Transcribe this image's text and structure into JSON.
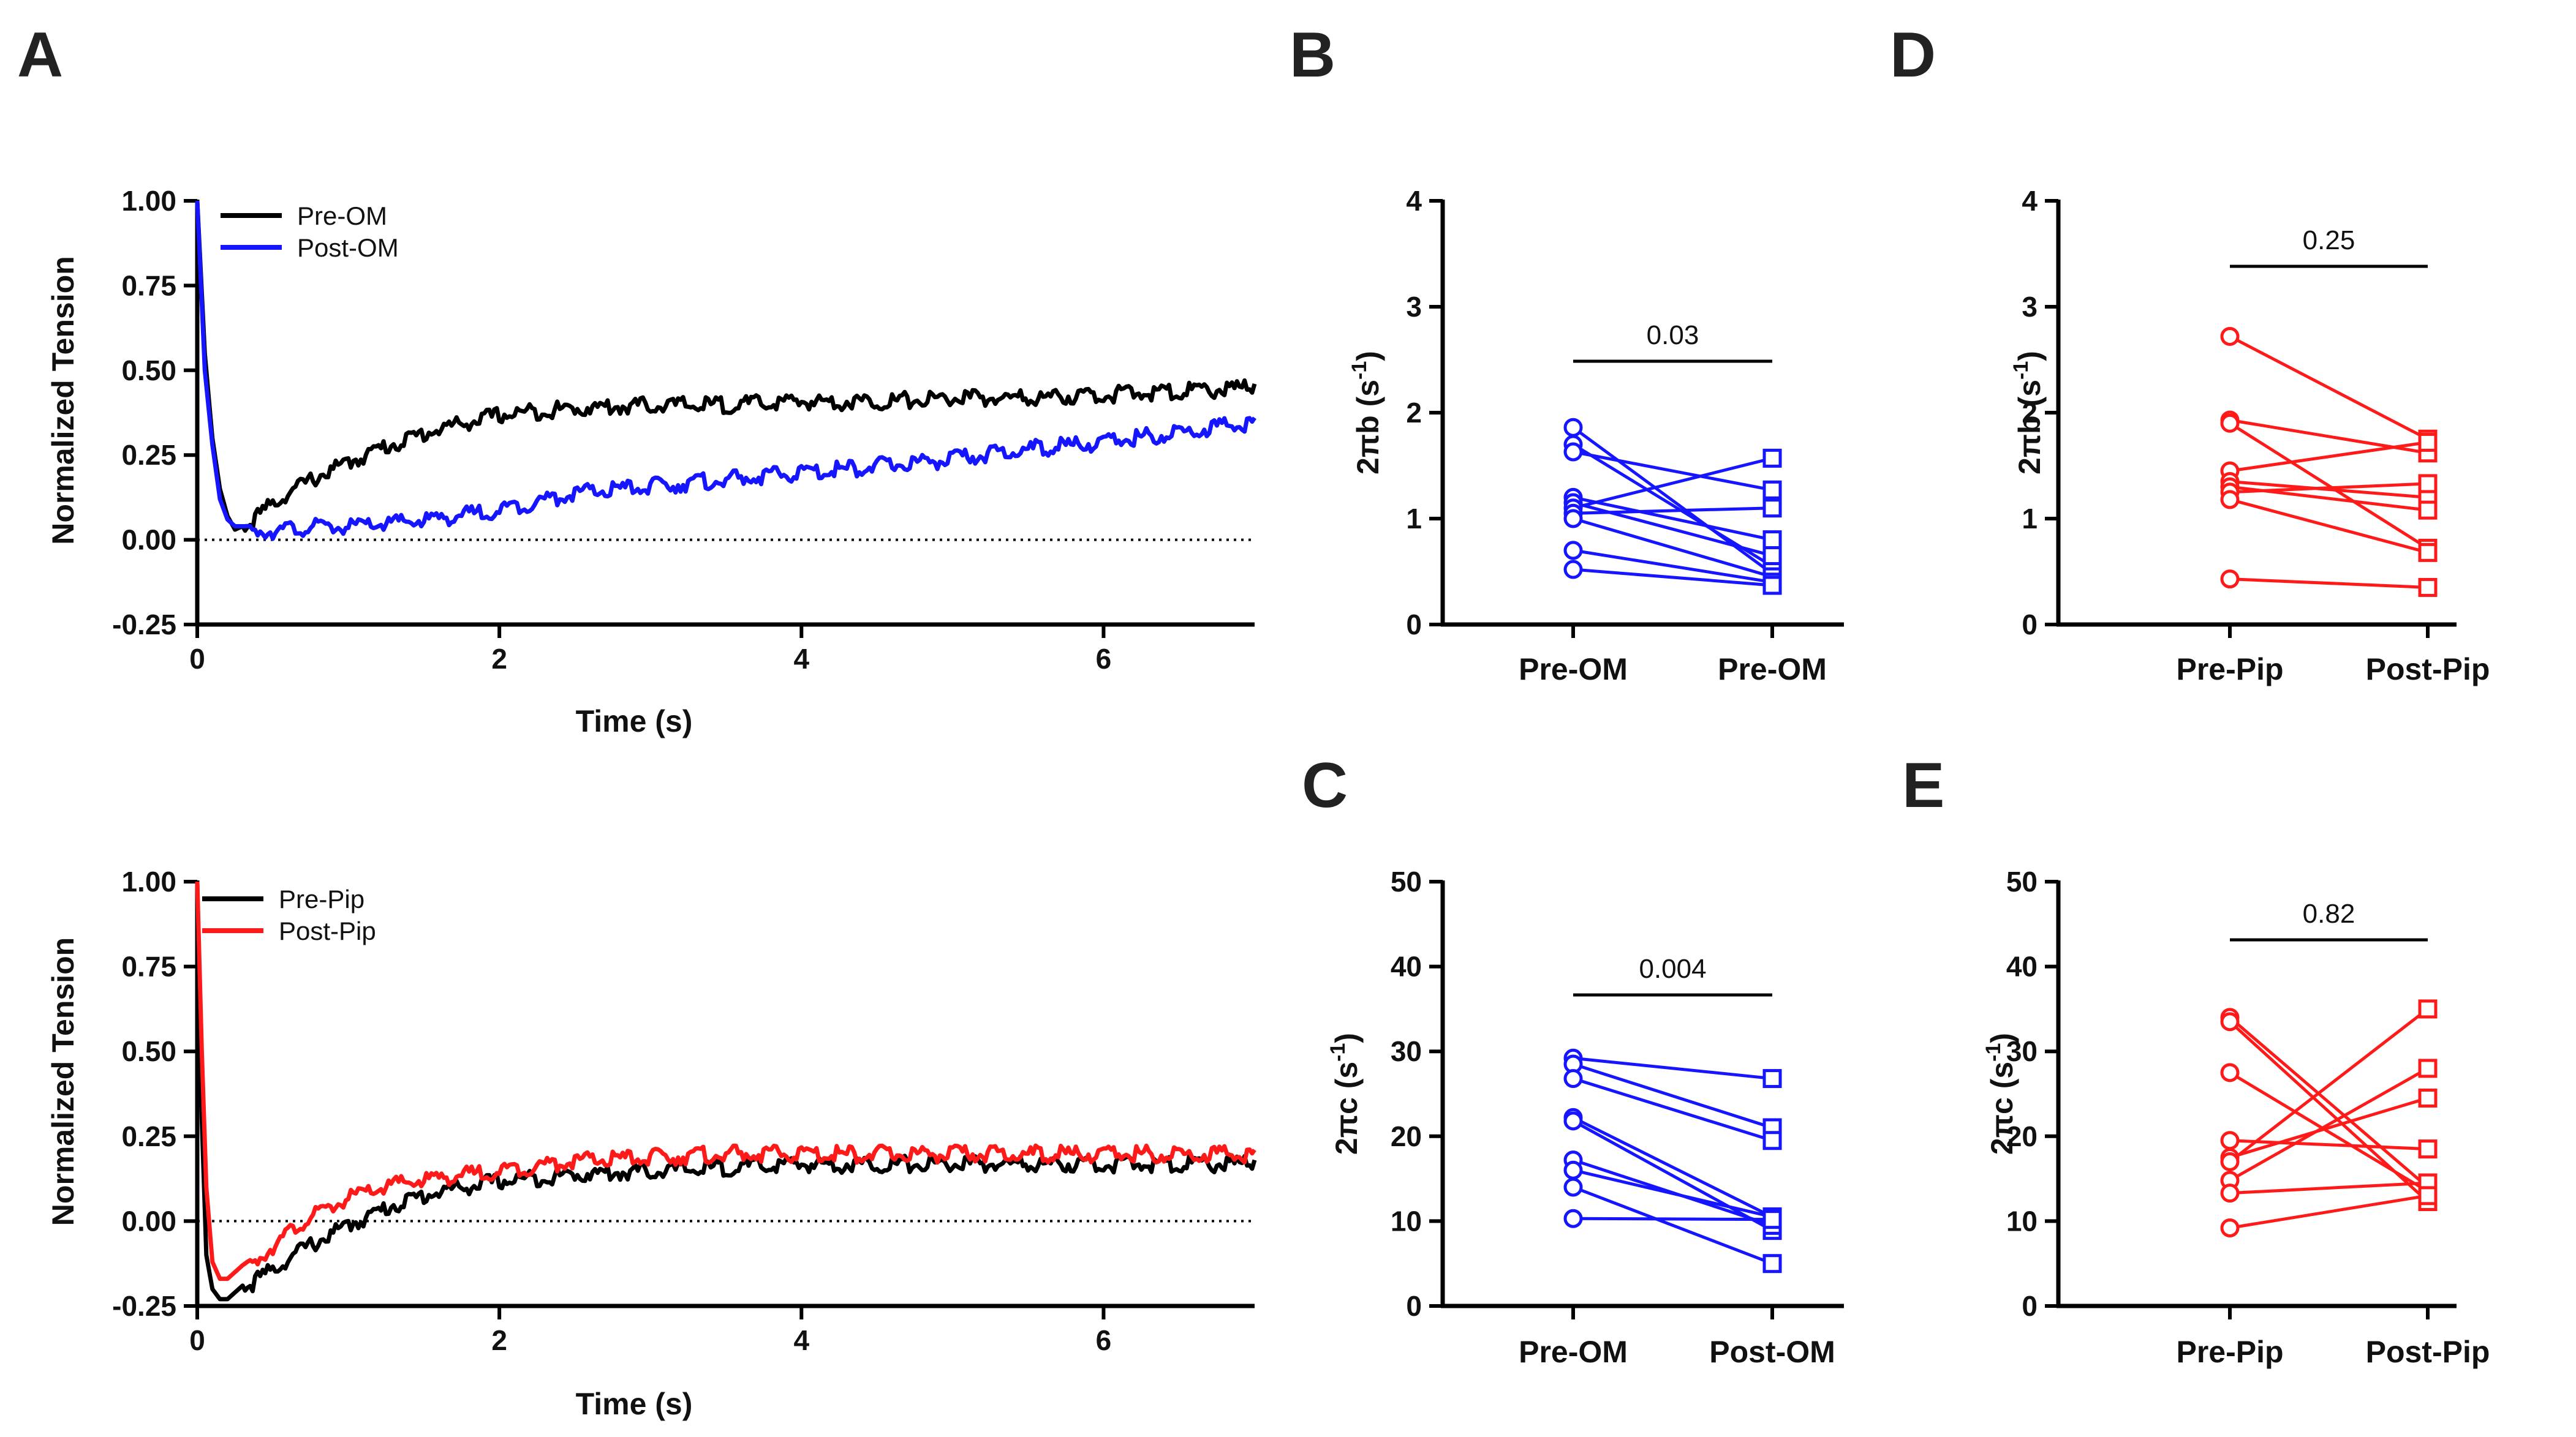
{
  "panel_letters": {
    "A": "A",
    "B": "B",
    "C": "C",
    "D": "D",
    "E": "E"
  },
  "colors": {
    "black": "#000000",
    "blue": "#1515ff",
    "red": "#ff1a1a"
  },
  "chart_data": [
    {
      "id": "A-top",
      "type": "line",
      "xlabel": "Time (s)",
      "ylabel": "Normalized Tension",
      "xlim": [
        0,
        7
      ],
      "ylim": [
        -0.25,
        1.0
      ],
      "xticks": [
        "0",
        "2",
        "4",
        "6"
      ],
      "xtick_values": [
        0,
        2,
        4,
        6
      ],
      "yticks": [
        "-0.25",
        "0.00",
        "0.25",
        "0.50",
        "0.75",
        "1.00"
      ],
      "ytick_values": [
        -0.25,
        0,
        0.25,
        0.5,
        0.75,
        1.0
      ],
      "reference_line": 0,
      "series": [
        {
          "name": "Pre-OM",
          "color": "#000000",
          "x": [
            0,
            0.05,
            0.1,
            0.15,
            0.2,
            0.25,
            0.3,
            0.4,
            0.5,
            0.6,
            0.8,
            1.0,
            1.2,
            1.4,
            1.6,
            1.8,
            2.0,
            2.2,
            2.5,
            3.0,
            3.5,
            4.0,
            4.5,
            5.0,
            5.5,
            6.0,
            6.5,
            7.0
          ],
          "y": [
            1.0,
            0.55,
            0.3,
            0.15,
            0.07,
            0.03,
            0.04,
            0.08,
            0.12,
            0.15,
            0.2,
            0.24,
            0.28,
            0.31,
            0.34,
            0.36,
            0.38,
            0.39,
            0.4,
            0.41,
            0.41,
            0.42,
            0.42,
            0.43,
            0.43,
            0.44,
            0.45,
            0.46
          ]
        },
        {
          "name": "Post-OM",
          "color": "#1515ff",
          "x": [
            0,
            0.05,
            0.1,
            0.15,
            0.2,
            0.25,
            0.3,
            0.5,
            0.8,
            1.0,
            1.5,
            2.0,
            2.5,
            3.0,
            3.5,
            4.0,
            4.5,
            5.0,
            5.5,
            6.0,
            6.5,
            7.0
          ],
          "y": [
            1.0,
            0.5,
            0.28,
            0.12,
            0.06,
            0.04,
            0.04,
            0.04,
            0.05,
            0.05,
            0.07,
            0.1,
            0.15,
            0.17,
            0.19,
            0.21,
            0.23,
            0.25,
            0.28,
            0.3,
            0.33,
            0.36
          ]
        }
      ]
    },
    {
      "id": "A-bottom",
      "type": "line",
      "xlabel": "Time (s)",
      "ylabel": "Normalized Tension",
      "xlim": [
        0,
        7
      ],
      "ylim": [
        -0.25,
        1.0
      ],
      "xticks": [
        "0",
        "2",
        "4",
        "6"
      ],
      "xtick_values": [
        0,
        2,
        4,
        6
      ],
      "yticks": [
        "-0.25",
        "0.00",
        "0.25",
        "0.50",
        "0.75",
        "1.00"
      ],
      "ytick_values": [
        -0.25,
        0,
        0.25,
        0.5,
        0.75,
        1.0
      ],
      "reference_line": 0,
      "series": [
        {
          "name": "Pre-Pip",
          "color": "#000000",
          "x": [
            0,
            0.03,
            0.06,
            0.1,
            0.15,
            0.2,
            0.25,
            0.3,
            0.4,
            0.5,
            0.7,
            1.0,
            1.3,
            1.6,
            2.0,
            2.5,
            3.0,
            3.5,
            4.0,
            5.0,
            6.0,
            7.0
          ],
          "y": [
            1.0,
            0.3,
            -0.1,
            -0.2,
            -0.23,
            -0.23,
            -0.21,
            -0.19,
            -0.16,
            -0.13,
            -0.07,
            0.0,
            0.06,
            0.1,
            0.13,
            0.15,
            0.16,
            0.17,
            0.18,
            0.18,
            0.18,
            0.18
          ]
        },
        {
          "name": "Post-Pip",
          "color": "#ff1a1a",
          "x": [
            0,
            0.03,
            0.06,
            0.1,
            0.15,
            0.2,
            0.25,
            0.3,
            0.4,
            0.5,
            0.7,
            1.0,
            1.3,
            1.6,
            2.0,
            2.5,
            3.0,
            3.5,
            4.0,
            5.0,
            6.0,
            7.0
          ],
          "y": [
            1.0,
            0.5,
            0.1,
            -0.12,
            -0.17,
            -0.17,
            -0.15,
            -0.13,
            -0.1,
            -0.06,
            0.01,
            0.08,
            0.12,
            0.14,
            0.16,
            0.19,
            0.2,
            0.21,
            0.21,
            0.21,
            0.21,
            0.21
          ]
        }
      ]
    },
    {
      "id": "B",
      "type": "paired-scatter",
      "color": "#1515ff",
      "ylabel": "2πb (s",
      "ylabel_exp": "-1",
      "ylabel_close": ")",
      "ylim": [
        0,
        4
      ],
      "yticks": [
        "0",
        "1",
        "2",
        "3",
        "4"
      ],
      "ytick_values": [
        0,
        1,
        2,
        3,
        4
      ],
      "categories": [
        "Pre-OM",
        "Pre-OM"
      ],
      "pvalue": "0.03",
      "pairs": [
        [
          1.86,
          0.48
        ],
        [
          1.7,
          0.55
        ],
        [
          1.63,
          1.27
        ],
        [
          1.2,
          0.8
        ],
        [
          1.15,
          0.65
        ],
        [
          1.1,
          1.57
        ],
        [
          1.05,
          1.1
        ],
        [
          1.0,
          0.45
        ],
        [
          0.7,
          0.4
        ],
        [
          0.52,
          0.37
        ]
      ]
    },
    {
      "id": "C",
      "type": "paired-scatter",
      "color": "#1515ff",
      "ylabel": "2πc (s",
      "ylabel_exp": "-1",
      "ylabel_close": ")",
      "ylim": [
        0,
        50
      ],
      "yticks": [
        "0",
        "10",
        "20",
        "30",
        "40",
        "50"
      ],
      "ytick_values": [
        0,
        10,
        20,
        30,
        40,
        50
      ],
      "categories": [
        "Pre-OM",
        "Post-OM"
      ],
      "pvalue": "0.004",
      "pairs": [
        [
          29.2,
          26.8
        ],
        [
          28.5,
          21.0
        ],
        [
          26.8,
          19.5
        ],
        [
          22.2,
          10.5
        ],
        [
          21.8,
          8.9
        ],
        [
          17.2,
          9.5
        ],
        [
          16.0,
          10.5
        ],
        [
          14.0,
          5.0
        ],
        [
          10.3,
          10.2
        ]
      ]
    },
    {
      "id": "D",
      "type": "paired-scatter",
      "color": "#ff1a1a",
      "ylabel": "2πb (s",
      "ylabel_exp": "-1",
      "ylabel_close": ")",
      "ylim": [
        0,
        4
      ],
      "yticks": [
        "0",
        "1",
        "2",
        "3",
        "4"
      ],
      "ytick_values": [
        0,
        1,
        2,
        3,
        4
      ],
      "categories": [
        "Pre-Pip",
        "Post-Pip"
      ],
      "pvalue": "0.25",
      "pairs": [
        [
          2.72,
          1.75
        ],
        [
          1.93,
          1.62
        ],
        [
          1.9,
          0.72
        ],
        [
          1.45,
          1.72
        ],
        [
          1.35,
          1.2
        ],
        [
          1.3,
          1.08
        ],
        [
          1.25,
          1.33
        ],
        [
          1.18,
          0.68
        ],
        [
          0.43,
          0.35
        ]
      ]
    },
    {
      "id": "E",
      "type": "paired-scatter",
      "color": "#ff1a1a",
      "ylabel": "2πc (s",
      "ylabel_exp": "-1",
      "ylabel_close": ")",
      "ylim": [
        0,
        50
      ],
      "yticks": [
        "0",
        "10",
        "20",
        "30",
        "40",
        "50"
      ],
      "ytick_values": [
        0,
        10,
        20,
        30,
        40,
        50
      ],
      "categories": [
        "Pre-Pip",
        "Post-Pip"
      ],
      "pvalue": "0.82",
      "pairs": [
        [
          34.0,
          14.0
        ],
        [
          33.5,
          12.3
        ],
        [
          27.5,
          13.5
        ],
        [
          19.5,
          18.5
        ],
        [
          17.5,
          24.5
        ],
        [
          17.0,
          35.0
        ],
        [
          14.8,
          28.0
        ],
        [
          13.3,
          14.5
        ],
        [
          9.2,
          13.0
        ]
      ]
    }
  ]
}
